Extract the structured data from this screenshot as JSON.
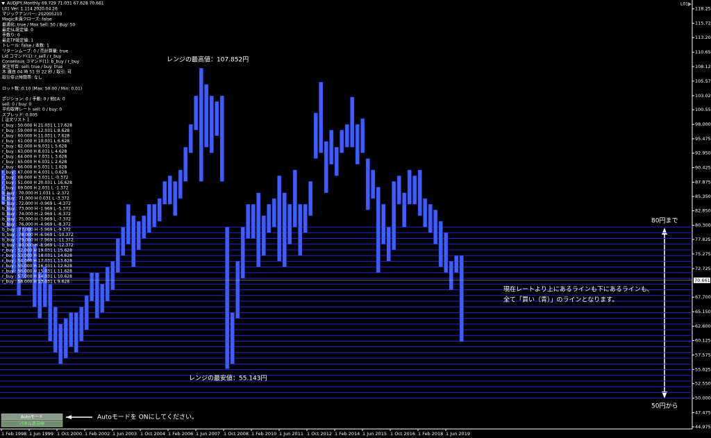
{
  "window": {
    "symbol_header": "AUDJPY,Monthly  69.729 71.031 67.628 70.661",
    "tag": "L01"
  },
  "panel": {
    "status": [
      "L01 Ver: 1.114 2020.04.26",
      "マジックナンバー: 202005210",
      "Magic未満クローズ: false",
      "最適化: true / Max Sell: 50 / Buy: 50",
      "最走SL設定値: 0",
      "手数り: 0",
      "最走TP設定値: 1",
      "トレール: false / 本数: 1",
      "リターンムーブ: 0 / 売計算量: true",
      "Lid コマンド(1): r_sell / r_buy",
      "Consensus コマンド(1): b_buy / r_buy",
      "発注可否: sell: true / buy: true",
      "木 魔自 04 時 51 分 22 秒 / 取引: 可",
      "取引停止時間帯: なし"
    ],
    "lot": "ロット数: 0.10 (Max: 50.00 / Min: 0.01)",
    "positions": [
      "ポジション: 0 / 手動: 0 / 他EA: 0",
      "sell: 0 / buy: 0",
      "平均取得レート sell: 0 / buy: 0",
      "スプレッド: 0.005"
    ],
    "orders_title": "[ 注文リスト ]",
    "orders": [
      "r_buy : 50.000 H 21.031 L 17.628",
      "r_buy : 59.000 H 12.031 L 8.628",
      "r_buy : 60.000 H 11.031 L 7.628",
      "r_buy : 61.000 H 10.031 L 6.628",
      "r_buy : 62.000 H 9.031 L 5.628",
      "r_buy : 63.000 H 8.031 L 4.628",
      "r_buy : 64.000 H 7.031 L 3.628",
      "r_buy : 65.000 H 6.031 L 2.628",
      "r_buy : 66.000 H 5.031 L 1.628",
      "r_buy : 67.000 H 4.031 L 0.628",
      "r_buy : 68.000 H 3.031 L -0.372",
      "r_buy : 51.000 H 20.031 L 16.628",
      "r_buy : 69.000 H 2.031 L -1.372",
      "b_buy : 70.000 H 1.031 L -2.372",
      "b_buy : 71.000 H 0.031 L -3.372",
      "b_buy : 72.000 H -0.969 L -4.372",
      "b_buy : 73.000 H -1.969 L -5.372",
      "b_buy : 74.000 H -2.969 L -6.372",
      "b_buy : 75.000 H -3.969 L -7.372",
      "b_buy : 76.000 H -4.969 L -8.372",
      "b_buy : 77.000 H -5.969 L -9.372",
      "b_buy : 78.000 H -6.969 L -10.372",
      "b_buy : 79.000 H -7.969 L -11.372",
      "b_buy : 80.000 H -8.969 L -12.372",
      "r_buy : 52.000 H 19.031 L 15.628",
      "r_buy : 53.000 H 18.031 L 14.628",
      "r_buy : 54.000 H 17.031 L 13.628",
      "r_buy : 55.000 H 16.031 L 12.628",
      "r_buy : 56.000 H 15.031 L 11.628",
      "r_buy : 57.000 H 14.031 L 10.628",
      "r_buy : 58.000 H 13.031 L 9.628"
    ]
  },
  "buttons": [
    "Autoモード",
    "パネル表示中"
  ],
  "chart_data": {
    "type": "candlestick",
    "x": [
      "1998-02-01",
      "1998-05-01",
      "1998-08-01",
      "1998-11-01",
      "1999-02-01",
      "1999-05-01",
      "1999-08-01",
      "1999-11-01",
      "2000-02-01",
      "2000-05-01",
      "2000-08-01",
      "2000-11-01",
      "2001-02-01",
      "2001-05-01",
      "2001-08-01",
      "2001-11-01",
      "2002-02-01",
      "2002-05-01",
      "2002-08-01",
      "2002-11-01",
      "2003-02-01",
      "2003-05-01",
      "2003-08-01",
      "2003-11-01",
      "2004-02-01",
      "2004-05-01",
      "2004-08-01",
      "2004-11-01",
      "2005-02-01",
      "2005-05-01",
      "2005-08-01",
      "2005-11-01",
      "2006-02-01",
      "2006-05-01",
      "2006-08-01",
      "2006-11-01",
      "2007-02-01",
      "2007-05-01",
      "2007-08-01",
      "2007-11-01",
      "2008-02-01",
      "2008-05-01",
      "2008-08-01",
      "2008-11-01",
      "2009-02-01",
      "2009-05-01",
      "2009-08-01",
      "2009-11-01",
      "2010-02-01",
      "2010-05-01",
      "2010-08-01",
      "2010-11-01",
      "2011-02-01",
      "2011-05-01",
      "2011-08-01",
      "2011-11-01",
      "2012-02-01",
      "2012-05-01",
      "2012-08-01",
      "2012-11-01",
      "2013-02-01",
      "2013-05-01",
      "2013-08-01",
      "2013-11-01",
      "2014-02-01",
      "2014-05-01",
      "2014-08-01",
      "2014-11-01",
      "2015-02-01",
      "2015-05-01",
      "2015-08-01",
      "2015-11-01",
      "2016-02-01",
      "2016-05-01",
      "2016-08-01",
      "2016-11-01",
      "2017-02-01",
      "2017-05-01",
      "2017-08-01",
      "2017-11-01",
      "2018-02-01",
      "2018-05-01",
      "2018-08-01",
      "2018-11-01",
      "2019-02-01",
      "2019-05-01",
      "2019-08-01",
      "2019-11-01",
      "2020-02-01"
    ],
    "high": [
      90,
      86,
      90,
      80,
      80,
      80,
      77,
      72,
      73,
      70,
      66,
      63,
      64,
      65,
      65,
      66,
      68,
      72,
      72,
      70,
      73,
      74,
      78,
      80,
      84,
      82,
      81,
      82,
      84,
      84,
      85,
      88,
      89,
      88,
      90,
      94,
      98,
      103,
      107.852,
      105,
      103,
      102,
      103,
      80,
      65,
      74,
      80,
      84,
      84,
      86,
      82,
      84,
      85,
      89,
      86,
      84,
      90,
      84,
      84,
      88,
      100,
      105.4,
      95,
      97,
      94,
      97,
      98,
      102.8,
      98,
      99,
      92,
      90,
      87,
      84,
      80,
      88,
      89,
      86,
      90,
      89,
      90,
      85,
      84,
      83,
      81,
      79,
      74,
      75,
      75
    ],
    "low": [
      84,
      80,
      72,
      68,
      71,
      74,
      66,
      64,
      66,
      60,
      58,
      56,
      57,
      59,
      58,
      60,
      62,
      67,
      64,
      65,
      67,
      69,
      72,
      75,
      77,
      73,
      76,
      78,
      79,
      80,
      81,
      84,
      84,
      82,
      85,
      88,
      93,
      97,
      88,
      94,
      93,
      96,
      88,
      55.143,
      56,
      64,
      71,
      78,
      78,
      73,
      75,
      79,
      80,
      74,
      73,
      77,
      80,
      75,
      79,
      82,
      92,
      93,
      86,
      91,
      89,
      93,
      94,
      94,
      91,
      93,
      83,
      85,
      72,
      77,
      74,
      76,
      84,
      80,
      84,
      84,
      82,
      80,
      79,
      77,
      73,
      72,
      69,
      72,
      59.9
    ],
    "color": "#3f5cff",
    "xlim": [
      "1998-02-01",
      "2031-04-01"
    ],
    "xticks": [
      {
        "value": "1998-02-01",
        "label": "1 Feb 1998"
      },
      {
        "value": "1999-06-01",
        "label": "1 Jun 1999"
      },
      {
        "value": "2000-10-01",
        "label": "1 Oct 2000"
      },
      {
        "value": "2002-02-01",
        "label": "1 Feb 2002"
      },
      {
        "value": "2003-06-01",
        "label": "1 Jun 2003"
      },
      {
        "value": "2004-10-01",
        "label": "1 Oct 2004"
      },
      {
        "value": "2006-02-01",
        "label": "1 Feb 2006"
      },
      {
        "value": "2007-06-01",
        "label": "1 Jun 2007"
      },
      {
        "value": "2008-10-01",
        "label": "1 Oct 2008"
      },
      {
        "value": "2010-02-01",
        "label": "1 Feb 2010"
      },
      {
        "value": "2011-06-01",
        "label": "1 Jun 2011"
      },
      {
        "value": "2012-10-01",
        "label": "1 Oct 2012"
      },
      {
        "value": "2014-02-01",
        "label": "1 Feb 2014"
      },
      {
        "value": "2015-06-01",
        "label": "1 Jun 2015"
      },
      {
        "value": "2016-10-01",
        "label": "1 Oct 2016"
      },
      {
        "value": "2018-02-01",
        "label": "1 Feb 2018"
      },
      {
        "value": "2019-06-01",
        "label": "1 Jun 2019"
      }
    ],
    "ylim": [
      44.6,
      119.8
    ],
    "yticks": [
      {
        "value": 118.25,
        "label": "118.250"
      },
      115.725,
      {
        "value": 113.2,
        "label": "113.200"
      },
      {
        "value": 110.65,
        "label": "110.650"
      },
      108.125,
      105.575,
      103.025,
      {
        "value": 100.55,
        "label": "100.550"
      },
      {
        "value": 98,
        "label": "98.000"
      },
      95.475,
      {
        "value": 92.95,
        "label": "92.950"
      },
      90.425,
      87.875,
      {
        "value": 85.35,
        "label": "85.350"
      },
      {
        "value": 82.85,
        "label": "82.850"
      },
      {
        "value": 80.3,
        "label": "80.300"
      },
      77.825,
      75.275,
      72.725,
      {
        "value": 67.7,
        "label": "67.700"
      },
      {
        "value": 65.15,
        "label": "65.150"
      },
      {
        "value": 62.6,
        "label": "62.600"
      },
      60.125,
      57.575,
      55.025,
      {
        "value": 52.55,
        "label": "52.550"
      },
      {
        "value": 50,
        "label": "50.000"
      },
      47.475,
      44.975
    ],
    "levels": [
      50,
      51,
      52,
      53,
      54,
      55,
      56,
      57,
      58,
      59,
      60,
      61,
      62,
      63,
      64,
      65,
      66,
      67,
      68,
      69,
      70,
      71,
      72,
      73,
      74,
      75,
      76,
      77,
      78,
      79,
      80
    ],
    "level_color": "#2424d8",
    "current_price": 70.661,
    "annotations": [
      "レンジの最高値：107.852円",
      "レンジの最安値：55.143円",
      "80円まで",
      "50円から",
      "現在レートより上にあるラインも下にあるラインも、",
      "全て「買い（青）」のラインとなります。",
      "Autoモードを ONにしてください。"
    ]
  }
}
